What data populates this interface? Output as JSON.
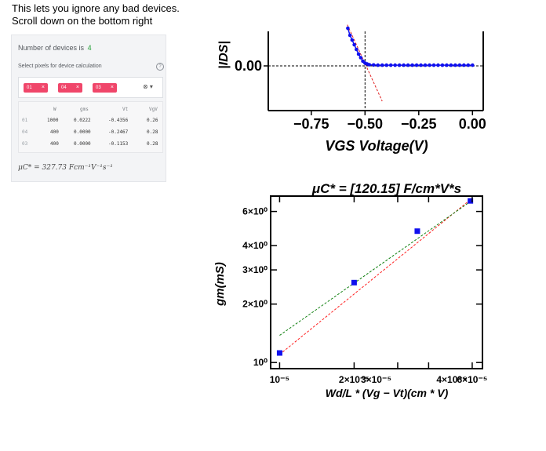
{
  "caption": {
    "line1": "This lets you ignore any bad devices.",
    "line2": "Scroll down on the bottom right"
  },
  "panel": {
    "count_label": "Number of devices is",
    "count_value": "4",
    "select_label": "Select pixels for device calculation",
    "help_glyph": "?",
    "chips": [
      "01",
      "04",
      "03"
    ],
    "chip_close_glyph": "×",
    "ctrl_glyph": "⊗ ▾",
    "table": {
      "headers": [
        "W",
        "gms",
        "Vt",
        "VgV"
      ],
      "rows": [
        {
          "idx": "01",
          "cells": [
            "1000",
            "0.0222",
            "-0.4356",
            "0.26"
          ]
        },
        {
          "idx": "04",
          "cells": [
            "400",
            "0.0000",
            "-0.2467",
            "0.28"
          ]
        },
        {
          "idx": "03",
          "cells": [
            "400",
            "0.0000",
            "-0.1153",
            "0.28"
          ]
        }
      ]
    },
    "formula": "μC* = 327.73 Fcm⁻¹V⁻¹s⁻¹"
  },
  "chart_data": [
    {
      "type": "scatter",
      "title": "",
      "xlabel": "VGS Voltage(V)",
      "ylabel": "|IDS|",
      "xticks": [
        "−0.75",
        "−0.50",
        "−0.25",
        "0.00"
      ],
      "yticks": [
        "0.00"
      ],
      "xlim": [
        -0.95,
        0.05
      ],
      "vertical_marker_x": -0.5,
      "series": [
        {
          "values": [
            [
              -0.58,
              0.16
            ],
            [
              -0.57,
              0.13
            ],
            [
              -0.56,
              0.11
            ],
            [
              -0.55,
              0.09
            ],
            [
              -0.54,
              0.07
            ],
            [
              -0.53,
              0.05
            ],
            [
              -0.52,
              0.035
            ],
            [
              -0.51,
              0.02
            ],
            [
              -0.5,
              0.012
            ],
            [
              -0.49,
              0.008
            ],
            [
              -0.48,
              0.005
            ],
            [
              -0.46,
              0.004
            ],
            [
              -0.44,
              0.003
            ],
            [
              -0.42,
              0.003
            ],
            [
              -0.4,
              0.003
            ],
            [
              -0.38,
              0.003
            ],
            [
              -0.36,
              0.003
            ],
            [
              -0.34,
              0.003
            ],
            [
              -0.32,
              0.003
            ],
            [
              -0.3,
              0.003
            ],
            [
              -0.28,
              0.003
            ],
            [
              -0.26,
              0.003
            ],
            [
              -0.24,
              0.003
            ],
            [
              -0.22,
              0.003
            ],
            [
              -0.2,
              0.003
            ],
            [
              -0.18,
              0.003
            ],
            [
              -0.16,
              0.003
            ],
            [
              -0.14,
              0.003
            ],
            [
              -0.12,
              0.003
            ],
            [
              -0.1,
              0.003
            ],
            [
              -0.08,
              0.003
            ],
            [
              -0.06,
              0.003
            ],
            [
              -0.04,
              0.003
            ],
            [
              -0.02,
              0.003
            ],
            [
              0.0,
              0.003
            ]
          ]
        }
      ],
      "fit_line": [
        [
          -0.59,
          0.19
        ],
        [
          -0.42,
          -0.15
        ]
      ]
    },
    {
      "type": "scatter",
      "title": "μC* = [120.15] F/cm*V*s",
      "xlabel": "Wd/L * (Vg − Vt)(cm * V)",
      "ylabel": "gm(mS)",
      "log_x": true,
      "log_y": true,
      "xticks": [
        "10⁻⁵",
        "2×10⁻⁵",
        "3×10⁻⁵",
        "4×10⁻⁵",
        "6×10⁻⁵"
      ],
      "yticks": [
        "10⁰",
        "2×10⁰",
        "3×10⁰",
        "4×10⁰",
        "6×10⁰"
      ],
      "xlim": [
        9.2e-06,
        6.6e-05
      ],
      "ylim": [
        0.93,
        7.2
      ],
      "series": [
        {
          "values": [
            [
              1e-05,
              1.12
            ],
            [
              2e-05,
              2.58
            ],
            [
              3.6e-05,
              4.75
            ],
            [
              5.9e-05,
              6.8
            ]
          ]
        }
      ],
      "fit_lines": [
        {
          "color": "#ff2020",
          "points": [
            [
              1e-05,
              1.1
            ],
            [
              5.9e-05,
              6.9
            ]
          ]
        },
        {
          "color": "#108010",
          "points": [
            [
              1e-05,
              1.38
            ],
            [
              5.9e-05,
              6.75
            ]
          ]
        }
      ],
      "marker_color": "#1010ee"
    }
  ]
}
